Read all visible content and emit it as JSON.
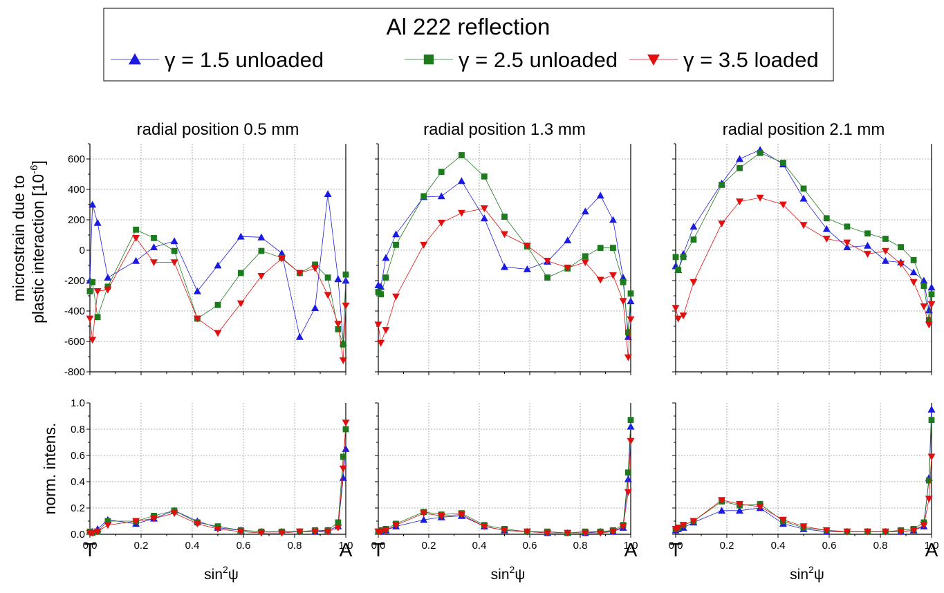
{
  "legend": {
    "title": "Al 222 reflection",
    "entries": [
      {
        "symbol": "γ",
        "label": " = 1.5 unloaded",
        "color": "#1a1ae0",
        "marker": "triangle-up"
      },
      {
        "symbol": "γ",
        "label": " = 2.5 unloaded",
        "color": "#1e7a1e",
        "marker": "square"
      },
      {
        "symbol": "γ",
        "label": " = 3.5 loaded",
        "color": "#e01010",
        "marker": "triangle-down"
      }
    ]
  },
  "axes": {
    "top_ylabel_line1": "microstrain due to",
    "top_ylabel_line2": "plastic interaction [10",
    "top_ylabel_exp": "-6",
    "top_ylabel_close": "]",
    "bottom_ylabel": "norm. intens.",
    "xlabel_base": "sin",
    "xlabel_exp": "2",
    "xlabel_psi": "ψ",
    "left_end": "T",
    "right_end": "A",
    "x_ticks": [
      "0.0",
      "0.2",
      "0.4",
      "0.6",
      "0.8",
      "1.0"
    ],
    "top_y_ticks": [
      "600",
      "400",
      "200",
      "0",
      "-200",
      "-400",
      "-600",
      "-800"
    ],
    "bottom_y_ticks": [
      "1.0",
      "0.8",
      "0.6",
      "0.4",
      "0.2",
      "0.0"
    ]
  },
  "chart_data": {
    "type": "line",
    "x": [
      0.0,
      0.01,
      0.03,
      0.07,
      0.18,
      0.25,
      0.33,
      0.42,
      0.5,
      0.59,
      0.67,
      0.75,
      0.82,
      0.88,
      0.93,
      0.97,
      0.99,
      1.0
    ],
    "xlim": [
      0,
      1
    ],
    "ylim_strain": [
      -800,
      700
    ],
    "ylim_intensity": [
      0,
      1
    ],
    "grid": true,
    "panels": [
      {
        "title": "radial position 0.5 mm",
        "strain": [
          {
            "name": "γ = 1.5 unloaded",
            "values": [
              -200,
              300,
              180,
              -180,
              -70,
              20,
              60,
              -270,
              -100,
              90,
              85,
              -20,
              -570,
              -380,
              370,
              -190,
              -610,
              -200
            ]
          },
          {
            "name": "γ = 2.5 unloaded",
            "values": [
              -270,
              -210,
              -440,
              -240,
              135,
              80,
              -5,
              -450,
              -360,
              -150,
              -5,
              -50,
              -150,
              -95,
              -180,
              -520,
              -620,
              -160
            ]
          },
          {
            "name": "γ = 3.5 loaded",
            "values": [
              -450,
              -590,
              -270,
              -260,
              80,
              -80,
              -80,
              -450,
              -545,
              -350,
              -170,
              -55,
              -150,
              -120,
              -295,
              -485,
              -725,
              -365
            ]
          }
        ],
        "intensity": [
          {
            "name": "γ = 1.5 unloaded",
            "values": [
              0.02,
              0.02,
              0.04,
              0.11,
              0.08,
              0.12,
              0.18,
              0.1,
              0.05,
              0.03,
              0.02,
              0.02,
              0.02,
              0.02,
              0.03,
              0.06,
              0.43,
              0.65
            ]
          },
          {
            "name": "γ = 2.5 unloaded",
            "values": [
              0.02,
              0.01,
              0.02,
              0.1,
              0.1,
              0.14,
              0.18,
              0.09,
              0.06,
              0.03,
              0.02,
              0.02,
              0.02,
              0.03,
              0.03,
              0.09,
              0.59,
              0.8
            ]
          },
          {
            "name": "γ = 3.5 loaded",
            "values": [
              0.01,
              0.01,
              0.02,
              0.07,
              0.1,
              0.12,
              0.16,
              0.08,
              0.04,
              0.02,
              0.01,
              0.01,
              0.02,
              0.02,
              0.02,
              0.05,
              0.5,
              0.85
            ]
          }
        ]
      },
      {
        "title": "radial position 1.3 mm",
        "strain": [
          {
            "name": "γ = 1.5 unloaded",
            "values": [
              -230,
              -240,
              -50,
              105,
              350,
              355,
              455,
              210,
              -110,
              -125,
              -75,
              65,
              255,
              360,
              200,
              -180,
              -570,
              -335
            ]
          },
          {
            "name": "γ = 2.5 unloaded",
            "values": [
              -275,
              -290,
              -180,
              35,
              355,
              515,
              625,
              485,
              220,
              25,
              -180,
              -120,
              -40,
              15,
              15,
              -210,
              -540,
              -285
            ]
          },
          {
            "name": "γ = 3.5 loaded",
            "values": [
              -490,
              -610,
              -525,
              -305,
              35,
              180,
              245,
              275,
              105,
              30,
              -70,
              -115,
              -80,
              -195,
              -165,
              -335,
              -705,
              -455
            ]
          }
        ],
        "intensity": [
          {
            "name": "γ = 1.5 unloaded",
            "values": [
              0.02,
              0.02,
              0.03,
              0.06,
              0.11,
              0.13,
              0.14,
              0.06,
              0.03,
              0.02,
              0.01,
              0.01,
              0.01,
              0.02,
              0.02,
              0.05,
              0.42,
              0.82
            ]
          },
          {
            "name": "γ = 2.5 unloaded",
            "values": [
              0.02,
              0.03,
              0.04,
              0.08,
              0.17,
              0.15,
              0.16,
              0.07,
              0.04,
              0.02,
              0.02,
              0.01,
              0.02,
              0.02,
              0.03,
              0.07,
              0.47,
              0.87
            ]
          },
          {
            "name": "γ = 3.5 loaded",
            "values": [
              0.02,
              0.02,
              0.03,
              0.07,
              0.16,
              0.14,
              0.15,
              0.06,
              0.03,
              0.02,
              0.01,
              0.01,
              0.01,
              0.01,
              0.02,
              0.06,
              0.32,
              0.71
            ]
          }
        ]
      },
      {
        "title": "radial position 2.1 mm",
        "strain": [
          {
            "name": "γ = 1.5 unloaded",
            "values": [
              -105,
              -130,
              -25,
              155,
              440,
              600,
              660,
              565,
              340,
              140,
              20,
              30,
              -70,
              -80,
              -145,
              -200,
              -395,
              -245
            ]
          },
          {
            "name": "γ = 2.5 unloaded",
            "values": [
              -45,
              -130,
              -45,
              70,
              430,
              540,
              640,
              575,
              405,
              210,
              155,
              110,
              75,
              20,
              -65,
              -235,
              -460,
              -290
            ]
          },
          {
            "name": "γ = 3.5 loaded",
            "values": [
              -380,
              -450,
              -430,
              -210,
              175,
              320,
              345,
              300,
              165,
              75,
              50,
              -25,
              -5,
              -90,
              -210,
              -370,
              -490,
              -355
            ]
          }
        ],
        "intensity": [
          {
            "name": "γ = 1.5 unloaded",
            "values": [
              0.03,
              0.04,
              0.05,
              0.09,
              0.18,
              0.18,
              0.2,
              0.08,
              0.04,
              0.02,
              0.02,
              0.02,
              0.02,
              0.02,
              0.03,
              0.06,
              0.43,
              0.95
            ]
          },
          {
            "name": "γ = 2.5 unloaded",
            "values": [
              0.04,
              0.05,
              0.07,
              0.1,
              0.25,
              0.22,
              0.23,
              0.1,
              0.05,
              0.03,
              0.02,
              0.02,
              0.02,
              0.03,
              0.04,
              0.09,
              0.41,
              0.87
            ]
          },
          {
            "name": "γ = 3.5 loaded",
            "values": [
              0.04,
              0.05,
              0.07,
              0.1,
              0.26,
              0.23,
              0.21,
              0.11,
              0.06,
              0.03,
              0.02,
              0.02,
              0.02,
              0.02,
              0.03,
              0.07,
              0.27,
              0.59
            ]
          }
        ]
      }
    ]
  }
}
